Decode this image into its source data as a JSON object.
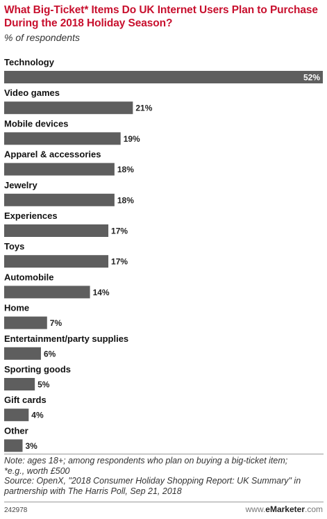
{
  "header": {
    "title": "What Big-Ticket* Items Do UK Internet Users Plan to Purchase During the 2018 Holiday Season?",
    "subtitle": "% of respondents"
  },
  "chart_data": {
    "type": "bar",
    "orientation": "horizontal",
    "title": "What Big-Ticket* Items Do UK Internet Users Plan to Purchase During the 2018 Holiday Season?",
    "subtitle": "% of respondents",
    "categories": [
      "Technology",
      "Video games",
      "Mobile devices",
      "Apparel & accessories",
      "Jewelry",
      "Experiences",
      "Toys",
      "Automobile",
      "Home",
      "Entertainment/party supplies",
      "Sporting goods",
      "Gift cards",
      "Other"
    ],
    "values": [
      52,
      21,
      19,
      18,
      18,
      17,
      17,
      14,
      7,
      6,
      5,
      4,
      3
    ],
    "value_labels": [
      "52%",
      "21%",
      "19%",
      "18%",
      "18%",
      "17%",
      "17%",
      "14%",
      "7%",
      "6%",
      "5%",
      "4%",
      "3%"
    ],
    "xlim": [
      0,
      52
    ],
    "bar_color": "#5e5e5e",
    "grid": false,
    "legend": "none"
  },
  "footer": {
    "note_line1": "Note: ages 18+; among respondents who plan on buying a big-ticket item;",
    "note_line2": "*e.g., worth £500",
    "source_line1": "Source: OpenX, \"2018 Consumer Holiday Shopping Report: UK Summary\" in",
    "source_line2": "partnership with The Harris Poll, Sep 21, 2018",
    "chart_id": "242978",
    "brand_host": "www.",
    "brand_name": "eMarketer",
    "brand_tld": ".com"
  },
  "colors": {
    "title": "#c8102e",
    "bar": "#5e5e5e",
    "inside_label": "#ffffff",
    "outside_label": "#222222"
  }
}
